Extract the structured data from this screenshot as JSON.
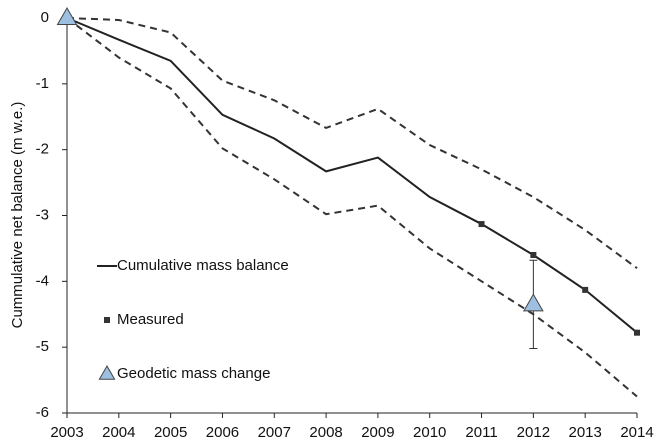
{
  "chart_data": {
    "type": "line",
    "y_label": "Cummulative net balance (m w.e.)",
    "x": [
      2003,
      2004,
      2005,
      2006,
      2007,
      2008,
      2009,
      2010,
      2011,
      2012,
      2013,
      2014
    ],
    "xlim": [
      2003,
      2014
    ],
    "xticks": [
      2003,
      2004,
      2005,
      2006,
      2007,
      2008,
      2009,
      2010,
      2011,
      2012,
      2013,
      2014
    ],
    "ylim": [
      -6,
      0
    ],
    "yticks": [
      -6,
      -5,
      -4,
      -3,
      -2,
      -1,
      0
    ],
    "legend": "lower left",
    "series": [
      {
        "name": "Cumulative mass balance",
        "color": "#222222",
        "style": "solid",
        "values": [
          0,
          -0.33,
          -0.65,
          -1.47,
          -1.83,
          -2.33,
          -2.12,
          -2.72,
          -3.13,
          -3.6,
          -4.13,
          -4.78
        ]
      },
      {
        "color": "#333333",
        "style": "dashed",
        "values": [
          0,
          -0.03,
          -0.22,
          -0.95,
          -1.25,
          -1.67,
          -1.38,
          -1.93,
          -2.3,
          -2.72,
          -3.22,
          -3.8
        ]
      },
      {
        "color": "#333333",
        "style": "dashed",
        "values": [
          0,
          -0.6,
          -1.07,
          -1.98,
          -2.45,
          -2.98,
          -2.85,
          -3.5,
          -4.0,
          -4.5,
          -5.08,
          -5.75
        ]
      },
      {
        "name": "Measured",
        "color": "#333333",
        "marker": "square",
        "x": [
          2011,
          2012,
          2013,
          2014
        ],
        "values": [
          -3.13,
          -3.6,
          -4.13,
          -4.78
        ]
      },
      {
        "name": "Geodetic mass change",
        "color": "#9dbfe0",
        "marker": "triangle",
        "x": [
          2003,
          2012
        ],
        "values": [
          0,
          -4.35
        ],
        "errors": [
          null,
          0.67
        ]
      }
    ]
  }
}
